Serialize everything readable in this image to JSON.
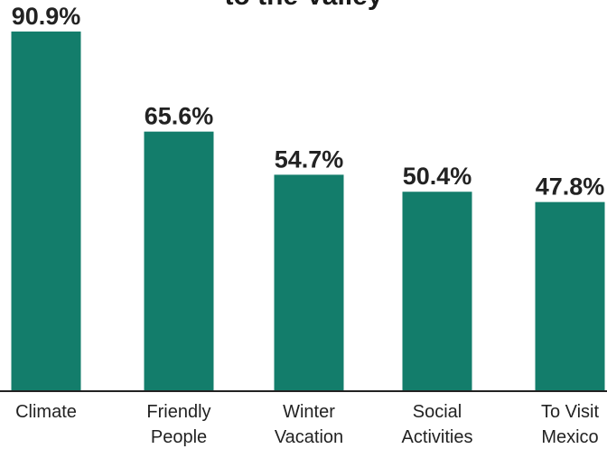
{
  "chart_data": {
    "type": "bar",
    "title": "to the Valley",
    "categories": [
      [
        "Climate"
      ],
      [
        "Friendly",
        "People"
      ],
      [
        "Winter",
        "Vacation"
      ],
      [
        "Social",
        "Activities"
      ],
      [
        "To Visit",
        "Mexico"
      ]
    ],
    "values": [
      90.9,
      65.6,
      54.7,
      50.4,
      47.8
    ],
    "data_labels": [
      "90.9%",
      "65.6%",
      "54.7%",
      "50.4%",
      "47.8%"
    ],
    "value_unit": "%",
    "ylim": [
      0,
      100
    ],
    "grid": false,
    "legend": "none",
    "bar_color": "#137d6b"
  }
}
